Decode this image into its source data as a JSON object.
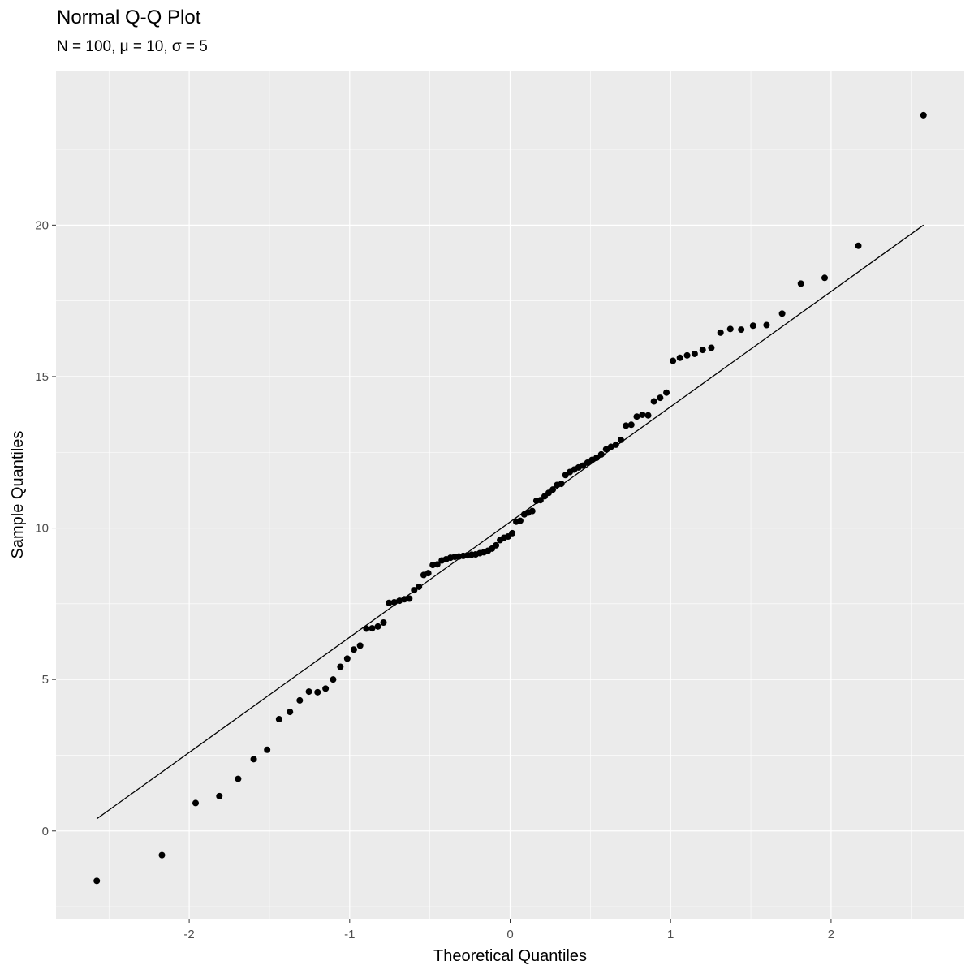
{
  "chart_data": {
    "type": "scatter",
    "title": "Normal Q-Q Plot",
    "subtitle": "N = 100, μ = 10, σ = 5",
    "xlabel": "Theoretical Quantiles",
    "ylabel": "Sample Quantiles",
    "xlim": [
      -2.83,
      2.83
    ],
    "ylim": [
      -2.9,
      25.1
    ],
    "x_ticks": [
      -2,
      -1,
      0,
      1,
      2
    ],
    "y_ticks": [
      0,
      5,
      10,
      15,
      20
    ],
    "grid": true,
    "background": "#ebebeb",
    "grid_color": "#ffffff",
    "point_color": "#000000",
    "reference_line": {
      "x": [
        -2.576,
        2.576
      ],
      "y": [
        0.4,
        20.0
      ]
    },
    "points": [
      [
        -2.576,
        -1.65
      ],
      [
        -2.17,
        -0.8
      ],
      [
        -1.96,
        0.92
      ],
      [
        -1.812,
        1.15
      ],
      [
        -1.695,
        1.72
      ],
      [
        -1.598,
        2.37
      ],
      [
        -1.514,
        2.68
      ],
      [
        -1.44,
        3.69
      ],
      [
        -1.372,
        3.93
      ],
      [
        -1.311,
        4.31
      ],
      [
        -1.254,
        4.6
      ],
      [
        -1.2,
        4.58
      ],
      [
        -1.15,
        4.7
      ],
      [
        -1.103,
        5.0
      ],
      [
        -1.058,
        5.42
      ],
      [
        -1.015,
        5.69
      ],
      [
        -0.974,
        5.99
      ],
      [
        -0.935,
        6.12
      ],
      [
        -0.896,
        6.68
      ],
      [
        -0.86,
        6.69
      ],
      [
        -0.824,
        6.75
      ],
      [
        -0.789,
        6.88
      ],
      [
        -0.755,
        7.53
      ],
      [
        -0.722,
        7.55
      ],
      [
        -0.69,
        7.6
      ],
      [
        -0.659,
        7.65
      ],
      [
        -0.628,
        7.67
      ],
      [
        -0.598,
        7.95
      ],
      [
        -0.568,
        8.06
      ],
      [
        -0.539,
        8.45
      ],
      [
        -0.51,
        8.51
      ],
      [
        -0.482,
        8.78
      ],
      [
        -0.454,
        8.8
      ],
      [
        -0.426,
        8.93
      ],
      [
        -0.399,
        8.97
      ],
      [
        -0.372,
        9.02
      ],
      [
        -0.345,
        9.05
      ],
      [
        -0.319,
        9.06
      ],
      [
        -0.292,
        9.08
      ],
      [
        -0.266,
        9.1
      ],
      [
        -0.24,
        9.12
      ],
      [
        -0.215,
        9.13
      ],
      [
        -0.189,
        9.17
      ],
      [
        -0.164,
        9.2
      ],
      [
        -0.138,
        9.25
      ],
      [
        -0.113,
        9.32
      ],
      [
        -0.088,
        9.43
      ],
      [
        -0.063,
        9.6
      ],
      [
        -0.038,
        9.68
      ],
      [
        -0.013,
        9.72
      ],
      [
        0.013,
        9.83
      ],
      [
        0.038,
        10.21
      ],
      [
        0.063,
        10.24
      ],
      [
        0.088,
        10.45
      ],
      [
        0.113,
        10.51
      ],
      [
        0.138,
        10.56
      ],
      [
        0.164,
        10.9
      ],
      [
        0.189,
        10.92
      ],
      [
        0.215,
        11.05
      ],
      [
        0.24,
        11.16
      ],
      [
        0.266,
        11.27
      ],
      [
        0.292,
        11.42
      ],
      [
        0.319,
        11.46
      ],
      [
        0.345,
        11.75
      ],
      [
        0.372,
        11.85
      ],
      [
        0.399,
        11.93
      ],
      [
        0.426,
        12.0
      ],
      [
        0.454,
        12.06
      ],
      [
        0.482,
        12.16
      ],
      [
        0.51,
        12.25
      ],
      [
        0.539,
        12.32
      ],
      [
        0.568,
        12.43
      ],
      [
        0.598,
        12.6
      ],
      [
        0.628,
        12.68
      ],
      [
        0.659,
        12.75
      ],
      [
        0.69,
        12.91
      ],
      [
        0.722,
        13.38
      ],
      [
        0.755,
        13.41
      ],
      [
        0.789,
        13.68
      ],
      [
        0.824,
        13.74
      ],
      [
        0.86,
        13.72
      ],
      [
        0.896,
        14.18
      ],
      [
        0.935,
        14.3
      ],
      [
        0.974,
        14.47
      ],
      [
        1.015,
        15.52
      ],
      [
        1.058,
        15.62
      ],
      [
        1.103,
        15.7
      ],
      [
        1.15,
        15.75
      ],
      [
        1.2,
        15.88
      ],
      [
        1.254,
        15.95
      ],
      [
        1.311,
        16.45
      ],
      [
        1.372,
        16.57
      ],
      [
        1.44,
        16.55
      ],
      [
        1.514,
        16.68
      ],
      [
        1.598,
        16.7
      ],
      [
        1.695,
        17.08
      ],
      [
        1.812,
        18.07
      ],
      [
        1.96,
        18.26
      ],
      [
        2.17,
        19.32
      ],
      [
        2.576,
        23.63
      ]
    ]
  }
}
